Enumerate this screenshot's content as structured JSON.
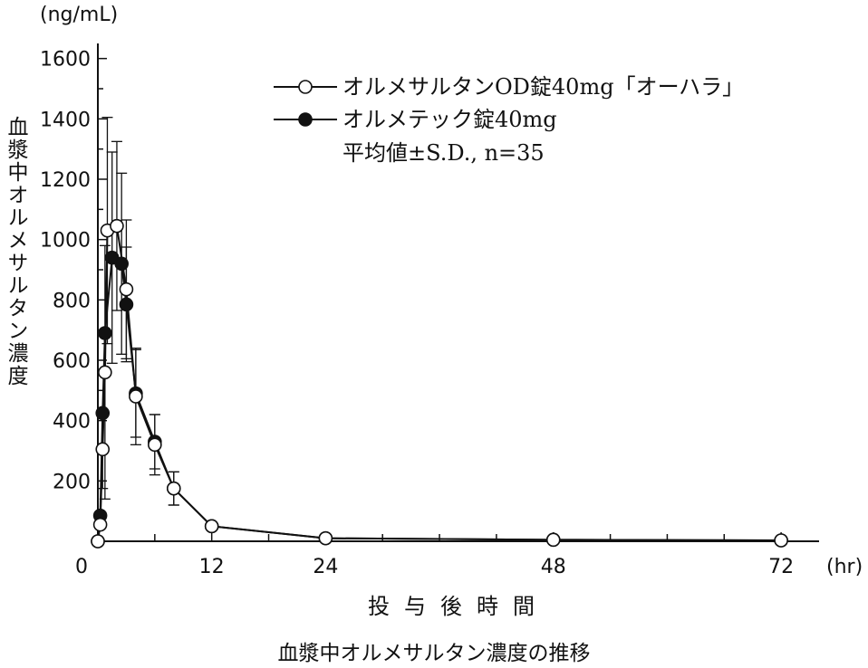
{
  "figure": {
    "caption": "血漿中オルメサルタン濃度の推移",
    "ylabel": "血漿中オルメサルタン濃度",
    "yunit": "(ng/mL)",
    "xlabel": "投与後時間",
    "xunit": "(hr)"
  },
  "chart_data": {
    "type": "line",
    "xlabel": "投与後時間",
    "ylabel": "血漿中オルメサルタン濃度",
    "xlim": [
      0,
      76
    ],
    "ylim": [
      0,
      1650
    ],
    "xticks": [
      0,
      12,
      24,
      48,
      72
    ],
    "yticks": [
      200,
      400,
      600,
      800,
      1000,
      1200,
      1400,
      1600
    ],
    "legend_position": "top-right",
    "legend_note": "平均値±S.D., n=35",
    "series": [
      {
        "name": "オルメサルタンOD錠40mg「オーハラ」",
        "marker": "open-circle",
        "x": [
          0,
          0.25,
          0.5,
          0.75,
          1,
          2,
          3,
          4,
          6,
          8,
          12,
          24,
          48,
          72
        ],
        "y": [
          0,
          55,
          305,
          560,
          1030,
          1045,
          835,
          480,
          320,
          175,
          50,
          10,
          5,
          3
        ],
        "sd": [
          0,
          0,
          130,
          420,
          375,
          280,
          230,
          160,
          100,
          55,
          12,
          0,
          0,
          0
        ]
      },
      {
        "name": "オルメテック錠40mg",
        "marker": "filled-circle",
        "x": [
          0,
          0.25,
          0.5,
          0.75,
          1.5,
          2.5,
          3,
          4,
          6,
          8,
          12,
          24,
          48,
          72
        ],
        "y": [
          0,
          85,
          425,
          690,
          940,
          920,
          785,
          490,
          330,
          175,
          50,
          10,
          5,
          3
        ],
        "sd": [
          0,
          0,
          0,
          0,
          350,
          300,
          190,
          145,
          90,
          55,
          12,
          0,
          0,
          0
        ]
      }
    ]
  }
}
